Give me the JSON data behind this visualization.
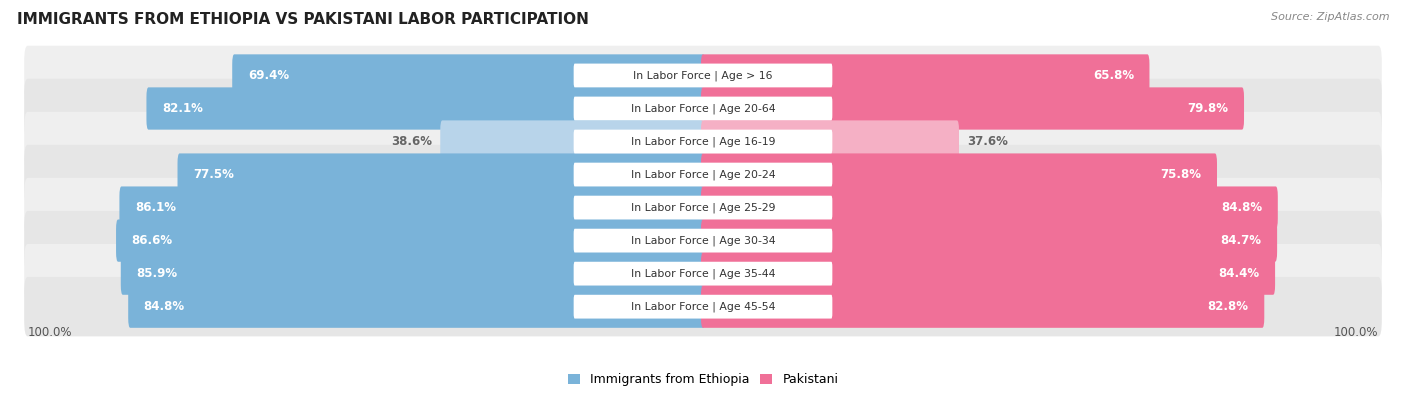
{
  "title": "IMMIGRANTS FROM ETHIOPIA VS PAKISTANI LABOR PARTICIPATION",
  "source": "Source: ZipAtlas.com",
  "categories": [
    "In Labor Force | Age > 16",
    "In Labor Force | Age 20-64",
    "In Labor Force | Age 16-19",
    "In Labor Force | Age 20-24",
    "In Labor Force | Age 25-29",
    "In Labor Force | Age 30-34",
    "In Labor Force | Age 35-44",
    "In Labor Force | Age 45-54"
  ],
  "ethiopia_values": [
    69.4,
    82.1,
    38.6,
    77.5,
    86.1,
    86.6,
    85.9,
    84.8
  ],
  "pakistani_values": [
    65.8,
    79.8,
    37.6,
    75.8,
    84.8,
    84.7,
    84.4,
    82.8
  ],
  "ethiopia_color": "#7ab3d9",
  "ethiopia_light_color": "#b8d4ea",
  "pakistani_color": "#f07098",
  "pakistani_light_color": "#f5b0c5",
  "row_bg_even": "#efefef",
  "row_bg_odd": "#e6e6e6",
  "background_color": "#ffffff",
  "max_value": 100.0,
  "label_fontsize": 8.5,
  "title_fontsize": 11,
  "source_fontsize": 8,
  "legend_fontsize": 9,
  "cat_label_fontsize": 7.8
}
